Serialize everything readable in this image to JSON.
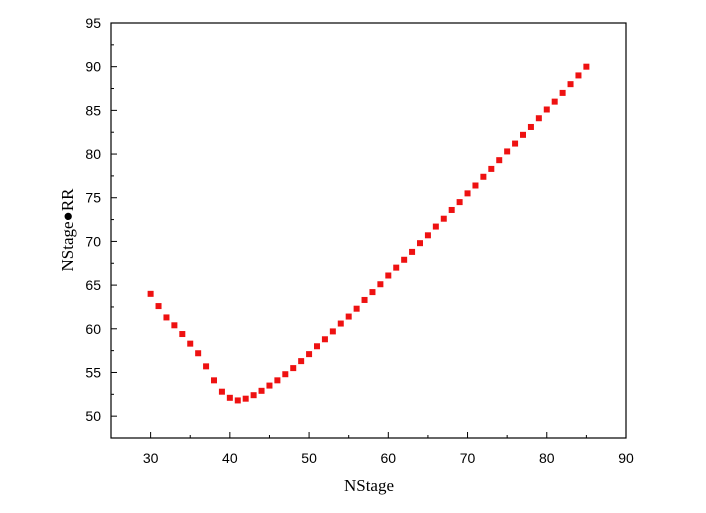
{
  "chart_data": {
    "type": "scatter",
    "xlabel": "NStage",
    "ylabel": "NStage●RR",
    "xlim": [
      25,
      90
    ],
    "ylim": [
      47.5,
      95
    ],
    "xticks": [
      30,
      40,
      50,
      60,
      70,
      80,
      90
    ],
    "yticks": [
      50,
      55,
      60,
      65,
      70,
      75,
      80,
      85,
      90,
      95
    ],
    "grid": false,
    "marker_color": "#ee1111",
    "series": [
      {
        "x": [
          30,
          31,
          32,
          33,
          34,
          35,
          36,
          37,
          38,
          39,
          40,
          41,
          42,
          43,
          44,
          45,
          46,
          47,
          48,
          49,
          50,
          51,
          52,
          53,
          54,
          55,
          56,
          57,
          58,
          59,
          60,
          61,
          62,
          63,
          64,
          65,
          66,
          67,
          68,
          69,
          70,
          71,
          72,
          73,
          74,
          75,
          76,
          77,
          78,
          79,
          80,
          81,
          82,
          83,
          84,
          85
        ],
        "y": [
          64.0,
          62.6,
          61.3,
          60.4,
          59.4,
          58.3,
          57.2,
          55.7,
          54.1,
          52.8,
          52.1,
          51.8,
          52.0,
          52.4,
          52.9,
          53.5,
          54.1,
          54.8,
          55.5,
          56.3,
          57.1,
          58.0,
          58.8,
          59.7,
          60.6,
          61.4,
          62.3,
          63.3,
          64.2,
          65.1,
          66.1,
          67.0,
          67.9,
          68.8,
          69.8,
          70.7,
          71.7,
          72.6,
          73.6,
          74.5,
          75.5,
          76.4,
          77.4,
          78.3,
          79.3,
          80.3,
          81.2,
          82.2,
          83.1,
          84.1,
          85.1,
          86.0,
          87.0,
          88.0,
          89.0,
          90.0
        ]
      }
    ]
  }
}
